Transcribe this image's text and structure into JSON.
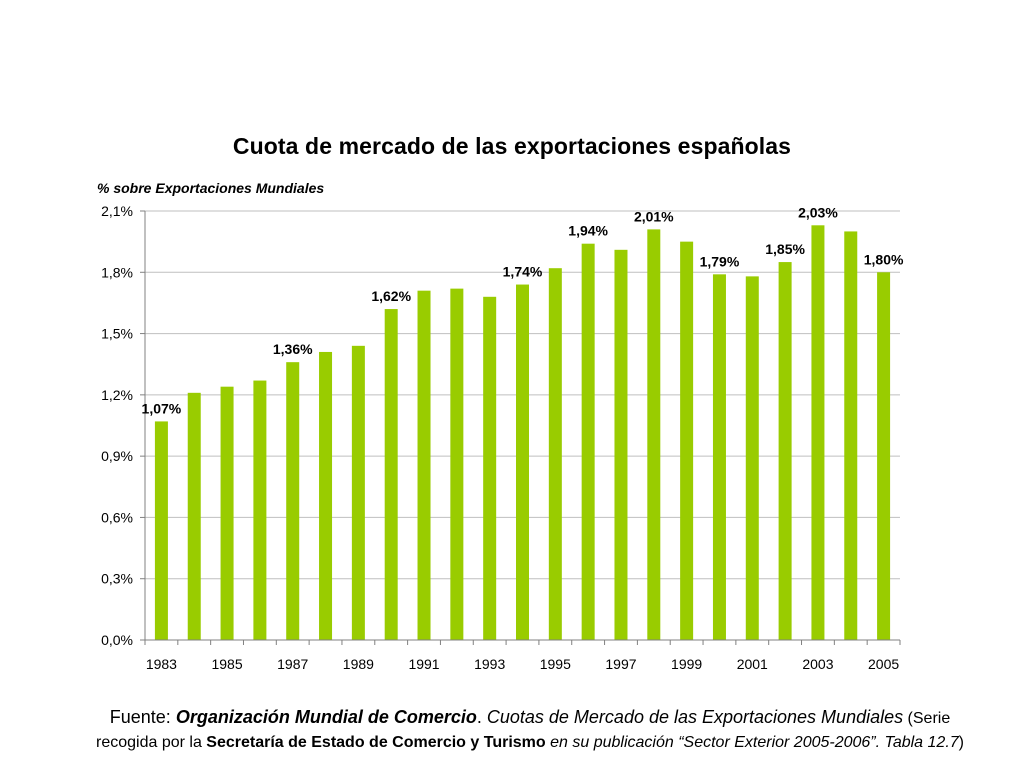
{
  "chart_data": {
    "type": "bar",
    "title": "Cuota de mercado de las exportaciones españolas",
    "ylabel": "% sobre Exportaciones Mundiales",
    "xlabel": "",
    "categories": [
      "1983",
      "1984",
      "1985",
      "1986",
      "1987",
      "1988",
      "1989",
      "1990",
      "1991",
      "1992",
      "1993",
      "1994",
      "1995",
      "1996",
      "1997",
      "1998",
      "1999",
      "2000",
      "2001",
      "2002",
      "2003",
      "2004",
      "2005"
    ],
    "values": [
      1.07,
      1.21,
      1.24,
      1.27,
      1.36,
      1.41,
      1.44,
      1.62,
      1.71,
      1.72,
      1.68,
      1.74,
      1.82,
      1.94,
      1.91,
      2.01,
      1.95,
      1.79,
      1.78,
      1.85,
      2.03,
      2.0,
      1.8
    ],
    "ylim": [
      0,
      2.1
    ],
    "yticks": [
      0,
      0.3,
      0.6,
      0.9,
      1.2,
      1.5,
      1.8,
      2.1
    ],
    "ytick_labels": [
      "0,0%",
      "0,3%",
      "0,6%",
      "0,9%",
      "1,2%",
      "1,5%",
      "1,8%",
      "2,1%"
    ],
    "xtick_labels": [
      "1983",
      "1985",
      "1987",
      "1989",
      "1991",
      "1993",
      "1995",
      "1997",
      "1999",
      "2001",
      "2003",
      "2005"
    ],
    "data_labels": [
      {
        "category": "1983",
        "text": "1,07%"
      },
      {
        "category": "1987",
        "text": "1,36%"
      },
      {
        "category": "1990",
        "text": "1,62%"
      },
      {
        "category": "1994",
        "text": "1,74%"
      },
      {
        "category": "1996",
        "text": "1,94%"
      },
      {
        "category": "1998",
        "text": "2,01%"
      },
      {
        "category": "2000",
        "text": "1,79%"
      },
      {
        "category": "2002",
        "text": "1,85%"
      },
      {
        "category": "2003",
        "text": "2,03%"
      },
      {
        "category": "2005",
        "text": "1,80%"
      }
    ],
    "grid": true,
    "bar_color": "#99cc00",
    "grid_color": "#bfbfbf",
    "axis_color": "#808080"
  },
  "source": {
    "prefix": "Fuente: ",
    "org": "Organización Mundial de Comercio",
    "dot": ". ",
    "pub": "Cuotas de Mercado de las Exportaciones Mundiales",
    "paren_open": " (Serie",
    "line2_a": "recogida por la ",
    "secretaria": "Secretaría de Estado de Comercio y Turismo",
    "line2_b": " en su publicación “Sector Exterior 2005-2006”. Tabla 12.7",
    "paren_close": ")"
  }
}
